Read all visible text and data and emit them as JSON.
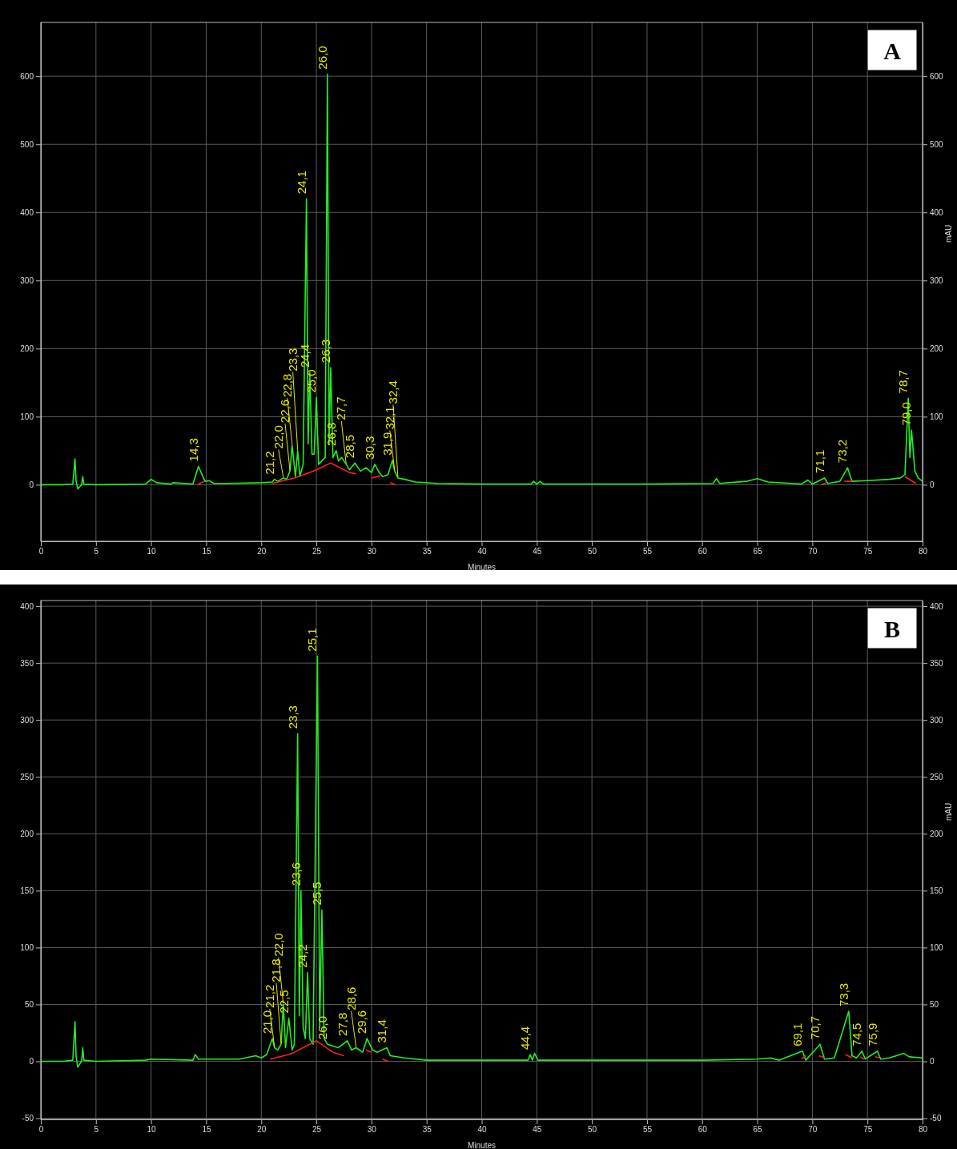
{
  "chart_data": [
    {
      "type": "line",
      "title": "A",
      "xlabel": "Minutes",
      "y2label": "mAU",
      "xlim": [
        0,
        80
      ],
      "xticks": [
        0,
        5,
        10,
        15,
        20,
        25,
        30,
        35,
        40,
        45,
        50,
        55,
        60,
        65,
        70,
        75,
        80
      ],
      "ylim": [
        -83,
        679
      ],
      "yticks": [
        0,
        100,
        200,
        300,
        400,
        500,
        600
      ],
      "y2lim": [
        -83,
        679
      ],
      "y2ticks": [
        0,
        100,
        200,
        300,
        400,
        500,
        600
      ],
      "grid": true,
      "marker": "none",
      "line_style": "solid",
      "series": [
        {
          "color": "#22ee22",
          "x": [
            0,
            2,
            2.9,
            3.1,
            3.2,
            3.35,
            3.7,
            3.8,
            3.9,
            5,
            9.5,
            10,
            10.5,
            11.8,
            12,
            13.8,
            14.3,
            14.9,
            15.3,
            15.7,
            17,
            20,
            21,
            21.2,
            21.5,
            22,
            22.3,
            22.6,
            22.8,
            23.1,
            23.3,
            23.5,
            23.8,
            24.1,
            24.25,
            24.4,
            24.6,
            24.8,
            25,
            25.2,
            25.5,
            25.8,
            26,
            26.15,
            26.3,
            26.5,
            26.8,
            27,
            27.3,
            27.7,
            28,
            28.5,
            29,
            29.5,
            30,
            30.3,
            30.7,
            31,
            31.5,
            31.9,
            32.1,
            32.4,
            33,
            34,
            36,
            40,
            44.5,
            44.7,
            45,
            45.3,
            45.6,
            50,
            55,
            61,
            61.3,
            61.6,
            64,
            65,
            66,
            69,
            69.6,
            70,
            71.1,
            71.4,
            72.5,
            73.2,
            73.6,
            75,
            77,
            78,
            78.4,
            78.7,
            78.85,
            79,
            79.3,
            79.6,
            80
          ],
          "values": [
            0,
            0,
            1,
            38,
            5,
            -6,
            0,
            12,
            1,
            0,
            1,
            8,
            3,
            1,
            3,
            1,
            27,
            5,
            6,
            2,
            2,
            3,
            4,
            8,
            5,
            10,
            8,
            20,
            58,
            12,
            50,
            12,
            30,
            420,
            60,
            165,
            45,
            45,
            128,
            30,
            35,
            40,
            603,
            60,
            172,
            40,
            50,
            35,
            40,
            30,
            22,
            32,
            20,
            25,
            18,
            30,
            18,
            12,
            15,
            36,
            20,
            10,
            8,
            4,
            2,
            1,
            1,
            5,
            1,
            5,
            1,
            1,
            1,
            2,
            9,
            2,
            5,
            9,
            4,
            1,
            7,
            1,
            10,
            2,
            5,
            25,
            5,
            6,
            8,
            10,
            15,
            127,
            40,
            80,
            20,
            10,
            5
          ]
        },
        {
          "color": "#ff2020",
          "x": [
            14.2,
            14.8,
            null,
            21,
            23,
            24.7,
            26.3,
            28,
            28.6,
            null,
            30,
            30.8,
            null,
            31.7,
            32.2,
            null,
            70.8,
            71.3,
            null,
            72.9,
            73.6,
            null,
            78.4,
            79.4
          ],
          "values": [
            0,
            5,
            null,
            2,
            10,
            20,
            32,
            18,
            16,
            null,
            10,
            13,
            null,
            3,
            0,
            null,
            0,
            3,
            null,
            5,
            5,
            null,
            12,
            2
          ]
        }
      ],
      "annotations": [
        {
          "text": "14,3",
          "x": 14.3,
          "y": 27
        },
        {
          "text": "21,2",
          "x": 21.2,
          "y": 8
        },
        {
          "text": "22,0",
          "x": 22,
          "y": 10
        },
        {
          "text": "22,6",
          "x": 22.6,
          "y": 20
        },
        {
          "text": "22,8",
          "x": 22.8,
          "y": 58
        },
        {
          "text": "23,3",
          "x": 23.3,
          "y": 50
        },
        {
          "text": "24,1",
          "x": 24.1,
          "y": 420
        },
        {
          "text": "24,4",
          "x": 24.4,
          "y": 165
        },
        {
          "text": "25,0",
          "x": 25,
          "y": 128
        },
        {
          "text": "26,0",
          "x": 26,
          "y": 603
        },
        {
          "text": "26,3",
          "x": 26.3,
          "y": 172
        },
        {
          "text": "26,8",
          "x": 26.8,
          "y": 50
        },
        {
          "text": "27,7",
          "x": 27.7,
          "y": 30
        },
        {
          "text": "28,5",
          "x": 28.5,
          "y": 32
        },
        {
          "text": "30,3",
          "x": 30.3,
          "y": 30
        },
        {
          "text": "31,9",
          "x": 31.9,
          "y": 36
        },
        {
          "text": "32,1",
          "x": 32.1,
          "y": 20
        },
        {
          "text": "32,4",
          "x": 32.4,
          "y": 10
        },
        {
          "text": "71,1",
          "x": 71.1,
          "y": 10
        },
        {
          "text": "73,2",
          "x": 73.2,
          "y": 25
        },
        {
          "text": "78,7",
          "x": 78.7,
          "y": 127
        },
        {
          "text": "79,0",
          "x": 79,
          "y": 80
        }
      ]
    },
    {
      "type": "line",
      "title": "B",
      "xlabel": "Minutes",
      "y2label": "mAU",
      "xlim": [
        0,
        80
      ],
      "xticks": [
        0,
        5,
        10,
        15,
        20,
        25,
        30,
        35,
        40,
        45,
        50,
        55,
        60,
        65,
        70,
        75,
        80
      ],
      "ylim": [
        -51,
        405
      ],
      "yticks": [
        -50,
        0,
        50,
        100,
        150,
        200,
        250,
        300,
        350,
        400
      ],
      "y2lim": [
        -51,
        405
      ],
      "y2ticks": [
        -50,
        0,
        50,
        100,
        150,
        200,
        250,
        300,
        350,
        400
      ],
      "grid": true,
      "marker": "none",
      "line_style": "solid",
      "series": [
        {
          "color": "#22ee22",
          "x": [
            0,
            2,
            2.9,
            3.1,
            3.2,
            3.35,
            3.7,
            3.8,
            3.9,
            5,
            9.5,
            10,
            13.8,
            14,
            14.3,
            18,
            19.5,
            20,
            20.5,
            21,
            21.2,
            21.5,
            21.8,
            22,
            22.2,
            22.5,
            22.8,
            23,
            23.3,
            23.45,
            23.6,
            23.8,
            24,
            24.2,
            24.4,
            24.7,
            25.1,
            25.3,
            25.5,
            25.7,
            26,
            27,
            27.8,
            28.2,
            28.6,
            29.2,
            29.6,
            30.1,
            30.5,
            31.4,
            31.7,
            33,
            35,
            40,
            44.2,
            44.4,
            44.6,
            44.8,
            45.1,
            50,
            60,
            65,
            66.2,
            67,
            69.1,
            69.4,
            70.7,
            71.1,
            72,
            73.3,
            73.6,
            74,
            74.5,
            74.8,
            75.9,
            76.2,
            77,
            78.3,
            78.8,
            80
          ],
          "values": [
            0,
            0,
            1,
            35,
            4,
            -5,
            0,
            12,
            1,
            0,
            1,
            2,
            1,
            6,
            2,
            2,
            5,
            3,
            6,
            20,
            12,
            10,
            15,
            50,
            12,
            38,
            10,
            15,
            288,
            40,
            150,
            30,
            20,
            78,
            20,
            15,
            356,
            30,
            133,
            20,
            15,
            12,
            18,
            10,
            12,
            8,
            20,
            10,
            8,
            12,
            5,
            3,
            1,
            1,
            1,
            6,
            1,
            7,
            1,
            1,
            1,
            2,
            3,
            1,
            9,
            1,
            15,
            2,
            3,
            44,
            5,
            3,
            9,
            2,
            9,
            2,
            3,
            7,
            4,
            3
          ]
        },
        {
          "color": "#ff2020",
          "x": [
            20.8,
            22.5,
            23,
            25,
            26.5,
            27.5,
            null,
            29.5,
            30,
            null,
            31,
            31.5,
            null,
            69,
            69.4,
            null,
            70.6,
            71.1,
            null,
            73,
            73.6,
            null,
            74.3,
            74.7,
            null,
            75.7,
            76.1
          ],
          "values": [
            2,
            6,
            8,
            18,
            8,
            5,
            null,
            10,
            8,
            null,
            2,
            0,
            null,
            2,
            5,
            null,
            5,
            3,
            null,
            6,
            3,
            null,
            4,
            2,
            null,
            4,
            3
          ]
        }
      ],
      "annotations": [
        {
          "text": "21,0",
          "x": 21,
          "y": 20
        },
        {
          "text": "21,2",
          "x": 21.2,
          "y": 12
        },
        {
          "text": "21,8",
          "x": 21.8,
          "y": 15
        },
        {
          "text": "22,0",
          "x": 22,
          "y": 50
        },
        {
          "text": "22,5",
          "x": 22.5,
          "y": 38
        },
        {
          "text": "23,3",
          "x": 23.3,
          "y": 288
        },
        {
          "text": "23,6",
          "x": 23.6,
          "y": 150
        },
        {
          "text": "24,2",
          "x": 24.2,
          "y": 78
        },
        {
          "text": "25,1",
          "x": 25.1,
          "y": 356
        },
        {
          "text": "25,5",
          "x": 25.5,
          "y": 133
        },
        {
          "text": "26,0",
          "x": 26,
          "y": 15
        },
        {
          "text": "27,8",
          "x": 27.8,
          "y": 18
        },
        {
          "text": "28,6",
          "x": 28.6,
          "y": 12
        },
        {
          "text": "29,6",
          "x": 29.6,
          "y": 20
        },
        {
          "text": "31,4",
          "x": 31.4,
          "y": 12
        },
        {
          "text": "44,4",
          "x": 44.4,
          "y": 6
        },
        {
          "text": "69,1",
          "x": 69.1,
          "y": 9
        },
        {
          "text": "70,7",
          "x": 70.7,
          "y": 15
        },
        {
          "text": "73,3",
          "x": 73.3,
          "y": 44
        },
        {
          "text": "74,5",
          "x": 74.5,
          "y": 9
        },
        {
          "text": "75,9",
          "x": 75.9,
          "y": 9
        }
      ]
    }
  ]
}
